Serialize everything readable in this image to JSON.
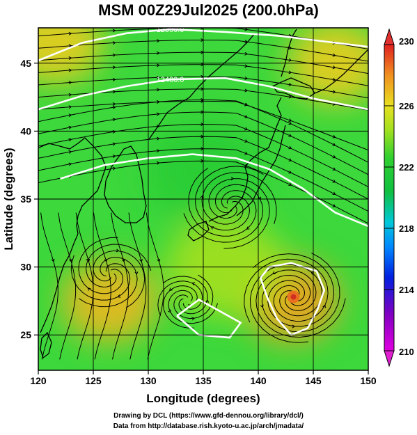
{
  "title": "MSM 00Z29Jul2025 (200.0hPa)",
  "x_axis": {
    "label": "Longitude (degrees)",
    "ticks": [
      "120",
      "125",
      "130",
      "135",
      "140",
      "145",
      "150"
    ]
  },
  "y_axis": {
    "label": "Latitude  (degrees)",
    "ticks": [
      "25",
      "30",
      "35",
      "40",
      "45"
    ]
  },
  "colorbar": {
    "ticks": [
      "230",
      "226",
      "222",
      "218",
      "214",
      "210"
    ],
    "min": 210,
    "max": 230
  },
  "contour_labels": [
    "12300.0",
    "12400.0"
  ],
  "credits": [
    "Drawing by DCL (https://www.gfd-dennou.org/library/dcl/)",
    "Data from http://database.rish.kyoto-u.ac.jp/arch/jmadata/"
  ],
  "chart_data": {
    "type": "heatmap",
    "title": "MSM 00Z29Jul2025 (200.0hPa)",
    "xlabel": "Longitude (degrees)",
    "ylabel": "Latitude  (degrees)",
    "xlim": [
      120,
      150
    ],
    "ylim": [
      22.4,
      47.6
    ],
    "zlim": [
      210,
      230
    ],
    "colors": {
      "low": "#d800d8",
      "mid_low": "#1e3cff",
      "mid": "#22cc44",
      "mid_high": "#d8e61a",
      "high": "#e03020"
    },
    "field_regions": [
      {
        "lon": 126.5,
        "lat": 27.5,
        "value": 227
      },
      {
        "lon": 143,
        "lat": 27.5,
        "value": 227.5
      },
      {
        "lon": 147,
        "lat": 45,
        "value": 226.5
      },
      {
        "lon": 121.5,
        "lat": 46.5,
        "value": 226.5
      },
      {
        "lon": 135,
        "lat": 37,
        "value": 222
      },
      {
        "lon": 137,
        "lat": 30,
        "value": 224.5
      }
    ],
    "contours": [
      {
        "label": "12300.0",
        "points": [
          [
            120,
            45.2
          ],
          [
            124,
            46.5
          ],
          [
            128,
            47.2
          ],
          [
            132,
            47.5
          ],
          [
            137,
            47.3
          ],
          [
            142,
            47
          ],
          [
            146,
            46.6
          ],
          [
            150,
            46.2
          ]
        ]
      },
      {
        "label": "12400.0",
        "points": [
          [
            120,
            41.6
          ],
          [
            124,
            42.6
          ],
          [
            128,
            43.3
          ],
          [
            132,
            43.8
          ],
          [
            137,
            43.9
          ],
          [
            141,
            43.3
          ],
          [
            145,
            42.4
          ],
          [
            150,
            41.6
          ]
        ]
      },
      {
        "label": "",
        "points": [
          [
            122,
            36.5
          ],
          [
            126,
            37.5
          ],
          [
            130,
            38
          ],
          [
            134,
            38.3
          ],
          [
            138,
            38
          ],
          [
            141,
            37.2
          ],
          [
            144,
            35.8
          ],
          [
            147,
            34
          ],
          [
            150,
            33
          ]
        ]
      },
      {
        "label": "",
        "points": [
          [
            140.2,
            29.2
          ],
          [
            141,
            30
          ],
          [
            143,
            30.3
          ],
          [
            145.3,
            29.7
          ],
          [
            146,
            28.3
          ],
          [
            145.4,
            26.9
          ],
          [
            144.5,
            25.5
          ],
          [
            143,
            25
          ],
          [
            141.7,
            26.2
          ],
          [
            140.8,
            27.8
          ],
          [
            140.2,
            29.2
          ]
        ]
      },
      {
        "label": "",
        "points": [
          [
            132.6,
            26.4
          ],
          [
            134.6,
            27.6
          ],
          [
            136.4,
            26.8
          ],
          [
            138.4,
            25.9
          ],
          [
            137.4,
            24.8
          ],
          [
            134.6,
            25.0
          ],
          [
            132.6,
            26.4
          ]
        ]
      }
    ],
    "circulation_centers": [
      {
        "type": "cyclonic",
        "lon": 137.5,
        "lat": 34.5
      },
      {
        "type": "typhoon",
        "lon": 143.2,
        "lat": 27.8
      }
    ],
    "grid": true
  }
}
